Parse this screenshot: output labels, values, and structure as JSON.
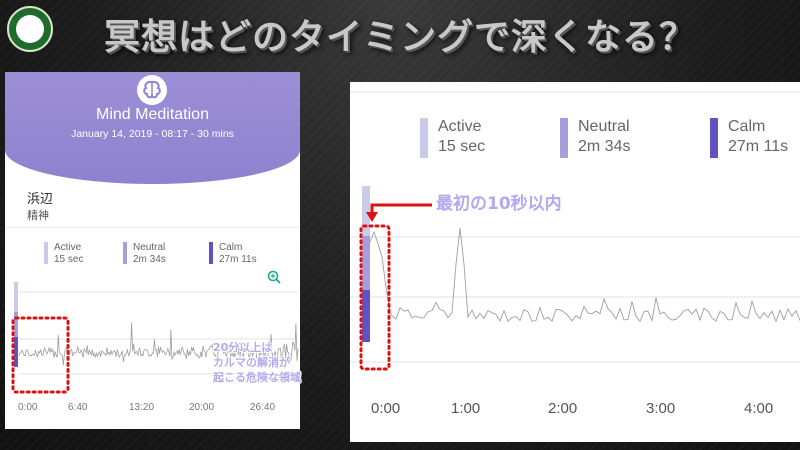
{
  "slide": {
    "title": "冥想はどのタイミングで深くなる？",
    "logo_icon": "club-emblem-icon"
  },
  "app": {
    "session_title": "Mind Meditation",
    "session_info": "January 14, 2019 - 08:17 - 30 mins",
    "location": "浜辺",
    "category": "精神",
    "icon": "brain-icon",
    "header_color": "#9c8fd6"
  },
  "legend": [
    {
      "label": "Active",
      "value": "15 sec",
      "color": "#c9cbe8"
    },
    {
      "label": "Neutral",
      "value": "2m 34s",
      "color": "#a89dd8"
    },
    {
      "label": "Calm",
      "value": "27m 11s",
      "color": "#5f53c2"
    }
  ],
  "chart_data": [
    {
      "type": "line",
      "x_ticks": [
        "0:00",
        "6:40",
        "13:20",
        "20:00",
        "26:40"
      ],
      "xlim": [
        0,
        30
      ],
      "series_color": "#9e9e9e",
      "state_bar": [
        {
          "state": "Active",
          "start_min": 0,
          "end_min": 0.25
        },
        {
          "state": "Neutral",
          "start_min": 0.25,
          "end_min": 2.8
        },
        {
          "state": "Calm",
          "start_min": 2.8,
          "end_min": 30
        }
      ]
    },
    {
      "type": "line",
      "x_ticks": [
        "0:00",
        "1:00",
        "2:00",
        "3:00",
        "4:00"
      ],
      "xlim": [
        0,
        4.5
      ],
      "series_color": "#9e9e9e"
    }
  ],
  "annotations": {
    "zoom_callout": "最初の10秒以内",
    "danger_note": [
      "20分以上は",
      "カルマの解消が",
      "起こる危険な領域"
    ],
    "highlight_color": "#dd1111",
    "note_color": "#b6a8f0"
  }
}
